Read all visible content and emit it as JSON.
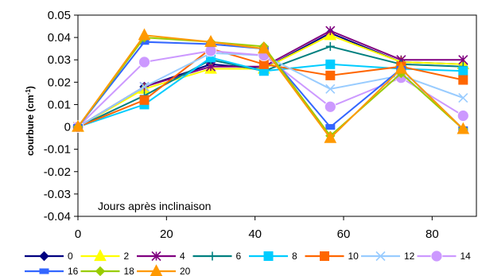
{
  "chart_data": {
    "type": "line",
    "ylabel": "courbure (cm",
    "ylabel_sup": "-1",
    "ylabel_close": ")",
    "annotation": "Jours après inclinaison",
    "xlim": [
      0,
      90
    ],
    "ylim": [
      -0.04,
      0.05
    ],
    "xticks": [
      "0",
      "20",
      "40",
      "60",
      "80"
    ],
    "xtick_values": [
      0,
      20,
      40,
      60,
      80
    ],
    "yticks": [
      "-0.04",
      "-0.03",
      "-0.02",
      "-0.01",
      "0",
      "0.01",
      "0.02",
      "0.03",
      "0.04",
      "0.05"
    ],
    "ytick_values": [
      -0.04,
      -0.03,
      -0.02,
      -0.01,
      0,
      0.01,
      0.02,
      0.03,
      0.04,
      0.05
    ],
    "legend_position": "bottom",
    "x": [
      0,
      15,
      30,
      42,
      57,
      73,
      87
    ],
    "series": [
      {
        "name": "0",
        "color": "#000080",
        "marker": "diamond",
        "values": [
          0,
          0.018,
          0.028,
          0.026,
          0.042,
          0.029,
          0.028
        ]
      },
      {
        "name": "2",
        "color": "#ffff00",
        "marker": "triangle",
        "values": [
          0,
          0.017,
          0.026,
          0.026,
          0.041,
          0.029,
          0.028
        ]
      },
      {
        "name": "4",
        "color": "#800080",
        "marker": "star",
        "values": [
          0,
          0.018,
          0.027,
          0.027,
          0.043,
          0.03,
          0.03
        ]
      },
      {
        "name": "6",
        "color": "#008080",
        "marker": "plus",
        "values": [
          0,
          0.014,
          0.03,
          0.025,
          0.036,
          0.028,
          0.027
        ]
      },
      {
        "name": "8",
        "color": "#00ccff",
        "marker": "square",
        "values": [
          0,
          0.01,
          0.031,
          0.025,
          0.028,
          0.026,
          0.025
        ]
      },
      {
        "name": "10",
        "color": "#ff6600",
        "marker": "square",
        "values": [
          0,
          0.012,
          0.035,
          0.028,
          0.023,
          0.027,
          0.021
        ]
      },
      {
        "name": "12",
        "color": "#99ccff",
        "marker": "x",
        "values": [
          0,
          0.018,
          0.033,
          0.032,
          0.017,
          0.023,
          0.013
        ]
      },
      {
        "name": "14",
        "color": "#cc99ff",
        "marker": "circle",
        "values": [
          0,
          0.029,
          0.034,
          0.032,
          0.009,
          0.022,
          0.005
        ]
      },
      {
        "name": "16",
        "color": "#3366ff",
        "marker": "rect",
        "values": [
          0,
          0.038,
          0.037,
          0.035,
          0,
          0.026,
          -0.001
        ]
      },
      {
        "name": "18",
        "color": "#99cc00",
        "marker": "diamond",
        "values": [
          0,
          0.04,
          0.038,
          0.036,
          -0.004,
          0.024,
          -0.001
        ]
      },
      {
        "name": "20",
        "color": "#ff9900",
        "marker": "triangle",
        "values": [
          0,
          0.041,
          0.038,
          0.035,
          -0.005,
          0.026,
          -0.001
        ]
      }
    ]
  }
}
